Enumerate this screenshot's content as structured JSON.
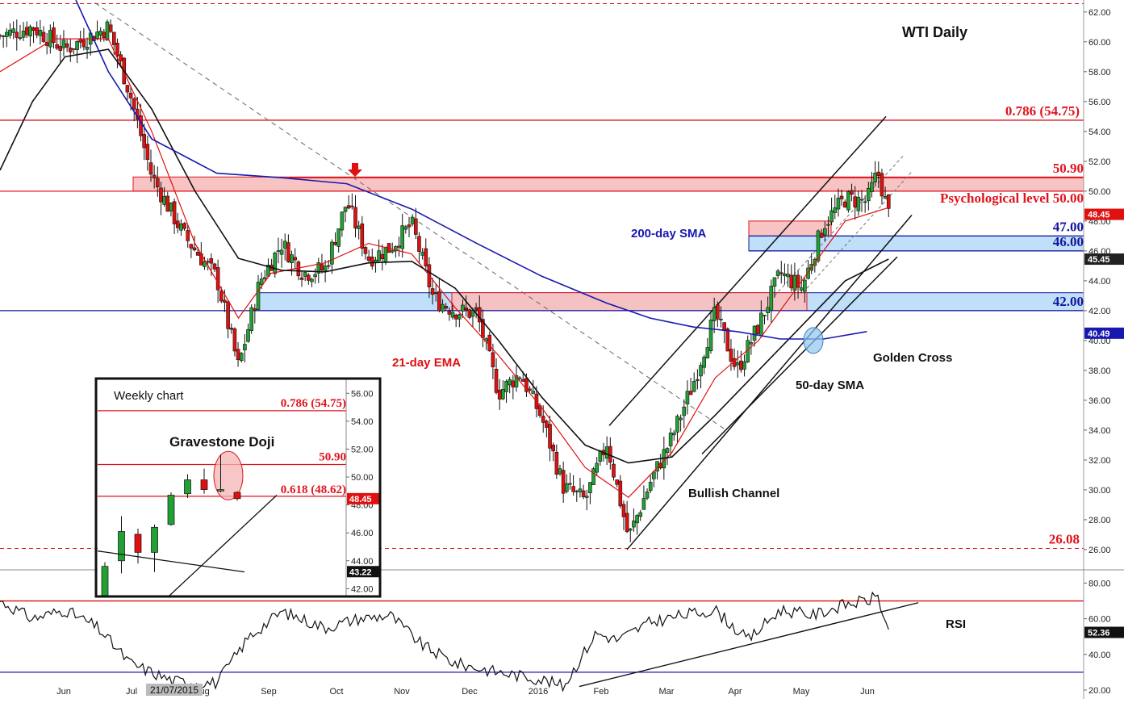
{
  "chart_data": {
    "type": "candlestick",
    "title": "WTI Daily",
    "main": {
      "ylim": [
        24.7,
        62.8
      ],
      "y_ticks": [
        26,
        28,
        30,
        32,
        34,
        36,
        38,
        40,
        42,
        44,
        46,
        48,
        50,
        52,
        54,
        56,
        58,
        60,
        62
      ],
      "x_ticks": [
        "Jun",
        "Jul",
        "Aug",
        "Sep",
        "Oct",
        "Nov",
        "Dec",
        "2016",
        "Feb",
        "Mar",
        "Apr",
        "May",
        "Jun"
      ],
      "date_badge": "21/07/2015",
      "price_badges": [
        {
          "value": "48.45",
          "color": "#e01010"
        },
        {
          "value": "45.45",
          "color": "#222222"
        },
        {
          "value": "40.49",
          "color": "#1818b0"
        }
      ],
      "levels": [
        {
          "value": 62.56,
          "label": "62.56",
          "style": "dashed",
          "color": "#e0141e"
        },
        {
          "value": 54.75,
          "label": "0.786 (54.75)",
          "style": "solid",
          "color": "#e0141e"
        },
        {
          "value": 50.9,
          "label": "50.90",
          "style": "solid",
          "color": "#e0141e"
        },
        {
          "value": 50.0,
          "label": "Psychological level 50.00",
          "style": "solid",
          "color": "#e0141e"
        },
        {
          "value": 47.0,
          "label": "47.00",
          "style": "zone",
          "color": "#1414a0"
        },
        {
          "value": 46.0,
          "label": "46.00",
          "style": "zone",
          "color": "#1414a0"
        },
        {
          "value": 42.0,
          "label": "42.00",
          "style": "solid",
          "color": "#1414a0"
        },
        {
          "value": 26.08,
          "label": "26.08",
          "style": "dashed",
          "color": "#e0141e"
        }
      ],
      "annotations": [
        "200-day SMA",
        "21-day EMA",
        "50-day SMA",
        "Golden Cross",
        "Bullish Channel"
      ],
      "close_path": [
        [
          0.0,
          60.4
        ],
        [
          0.03,
          61.0
        ],
        [
          0.06,
          59.5
        ],
        [
          0.1,
          61.0
        ],
        [
          0.12,
          56.5
        ],
        [
          0.14,
          51.0
        ],
        [
          0.17,
          47.0
        ],
        [
          0.2,
          44.2
        ],
        [
          0.22,
          38.2
        ],
        [
          0.24,
          44.0
        ],
        [
          0.26,
          46.5
        ],
        [
          0.28,
          44.5
        ],
        [
          0.3,
          44.8
        ],
        [
          0.32,
          49.3
        ],
        [
          0.34,
          45.5
        ],
        [
          0.36,
          46.2
        ],
        [
          0.38,
          47.8
        ],
        [
          0.4,
          42.8
        ],
        [
          0.42,
          42.0
        ],
        [
          0.44,
          41.8
        ],
        [
          0.46,
          36.5
        ],
        [
          0.48,
          37.8
        ],
        [
          0.5,
          34.8
        ],
        [
          0.52,
          30.2
        ],
        [
          0.54,
          29.3
        ],
        [
          0.56,
          33.2
        ],
        [
          0.58,
          26.8
        ],
        [
          0.6,
          30.5
        ],
        [
          0.62,
          33.5
        ],
        [
          0.64,
          37.2
        ],
        [
          0.66,
          41.8
        ],
        [
          0.68,
          38.0
        ],
        [
          0.7,
          41.0
        ],
        [
          0.72,
          44.5
        ],
        [
          0.74,
          43.5
        ],
        [
          0.76,
          47.8
        ],
        [
          0.78,
          49.5
        ],
        [
          0.8,
          49.3
        ],
        [
          0.81,
          51.3
        ],
        [
          0.82,
          48.45
        ]
      ],
      "ema21_path": [
        [
          0.0,
          58.0
        ],
        [
          0.05,
          60.2
        ],
        [
          0.1,
          60.2
        ],
        [
          0.14,
          54.0
        ],
        [
          0.18,
          46.5
        ],
        [
          0.22,
          41.5
        ],
        [
          0.25,
          44.5
        ],
        [
          0.3,
          45.2
        ],
        [
          0.34,
          46.5
        ],
        [
          0.38,
          45.8
        ],
        [
          0.42,
          42.2
        ],
        [
          0.46,
          39.0
        ],
        [
          0.5,
          35.5
        ],
        [
          0.54,
          31.5
        ],
        [
          0.58,
          29.5
        ],
        [
          0.62,
          32.5
        ],
        [
          0.66,
          37.5
        ],
        [
          0.7,
          40.0
        ],
        [
          0.74,
          44.0
        ],
        [
          0.78,
          48.0
        ],
        [
          0.82,
          48.9
        ]
      ],
      "sma50_path": [
        [
          0.0,
          51.4
        ],
        [
          0.03,
          56.0
        ],
        [
          0.06,
          59.0
        ],
        [
          0.1,
          59.5
        ],
        [
          0.14,
          55.5
        ],
        [
          0.18,
          50.0
        ],
        [
          0.22,
          45.5
        ],
        [
          0.26,
          44.7
        ],
        [
          0.3,
          44.6
        ],
        [
          0.34,
          45.2
        ],
        [
          0.38,
          45.3
        ],
        [
          0.42,
          43.5
        ],
        [
          0.46,
          40.0
        ],
        [
          0.5,
          36.2
        ],
        [
          0.54,
          33.0
        ],
        [
          0.58,
          31.8
        ],
        [
          0.62,
          32.2
        ],
        [
          0.66,
          35.0
        ],
        [
          0.7,
          38.0
        ],
        [
          0.74,
          41.0
        ],
        [
          0.78,
          44.0
        ],
        [
          0.82,
          45.45
        ]
      ],
      "sma200_path": [
        [
          0.07,
          62.8
        ],
        [
          0.1,
          58.0
        ],
        [
          0.14,
          53.5
        ],
        [
          0.2,
          51.2
        ],
        [
          0.26,
          50.9
        ],
        [
          0.32,
          50.5
        ],
        [
          0.38,
          48.8
        ],
        [
          0.44,
          46.5
        ],
        [
          0.5,
          44.3
        ],
        [
          0.56,
          42.5
        ],
        [
          0.6,
          41.5
        ],
        [
          0.64,
          40.9
        ],
        [
          0.68,
          40.6
        ],
        [
          0.72,
          40.1
        ],
        [
          0.76,
          40.1
        ],
        [
          0.8,
          40.6
        ]
      ]
    },
    "inset": {
      "title": "Weekly chart",
      "ylim": [
        41.5,
        57.0
      ],
      "y_ticks": [
        42,
        44,
        46,
        48,
        50,
        52,
        54,
        56
      ],
      "levels": [
        {
          "value": 54.75,
          "label": "0.786 (54.75)"
        },
        {
          "value": 50.9,
          "label": "50.90"
        },
        {
          "value": 48.62,
          "label": "0.618 (48.62)"
        }
      ],
      "annotation": "Gravestone Doji",
      "price_badges": [
        {
          "value": "48.45",
          "color": "#e01010"
        },
        {
          "value": "43.22",
          "color": "#111111"
        }
      ],
      "candles": [
        {
          "o": 40.0,
          "h": 43.9,
          "l": 39.5,
          "c": 43.6
        },
        {
          "o": 44.0,
          "h": 47.2,
          "l": 43.1,
          "c": 46.1
        },
        {
          "o": 45.9,
          "h": 46.3,
          "l": 43.8,
          "c": 44.6
        },
        {
          "o": 44.6,
          "h": 46.6,
          "l": 43.2,
          "c": 46.4
        },
        {
          "o": 46.6,
          "h": 48.9,
          "l": 46.5,
          "c": 48.7
        },
        {
          "o": 48.8,
          "h": 50.2,
          "l": 48.5,
          "c": 49.8
        },
        {
          "o": 49.8,
          "h": 50.6,
          "l": 48.8,
          "c": 49.1
        },
        {
          "o": 49.0,
          "h": 51.6,
          "l": 48.9,
          "c": 49.1
        },
        {
          "o": 48.9,
          "h": 49.0,
          "l": 48.3,
          "c": 48.45
        }
      ]
    },
    "rsi": {
      "label": "RSI",
      "ylim": [
        15,
        87
      ],
      "y_ticks": [
        20,
        40,
        60,
        80
      ],
      "levels": [
        70,
        30
      ],
      "last_value": "52.36",
      "path": [
        [
          0.0,
          70
        ],
        [
          0.03,
          60
        ],
        [
          0.06,
          65
        ],
        [
          0.09,
          55
        ],
        [
          0.12,
          35
        ],
        [
          0.16,
          25
        ],
        [
          0.2,
          24
        ],
        [
          0.23,
          50
        ],
        [
          0.26,
          64
        ],
        [
          0.3,
          55
        ],
        [
          0.33,
          60
        ],
        [
          0.36,
          62
        ],
        [
          0.39,
          45
        ],
        [
          0.42,
          35
        ],
        [
          0.46,
          30
        ],
        [
          0.5,
          26
        ],
        [
          0.52,
          22
        ],
        [
          0.55,
          52
        ],
        [
          0.57,
          48
        ],
        [
          0.6,
          58
        ],
        [
          0.63,
          62
        ],
        [
          0.66,
          65
        ],
        [
          0.69,
          48
        ],
        [
          0.72,
          65
        ],
        [
          0.75,
          62
        ],
        [
          0.78,
          68
        ],
        [
          0.8,
          70
        ],
        [
          0.81,
          73
        ],
        [
          0.82,
          52
        ]
      ]
    }
  }
}
